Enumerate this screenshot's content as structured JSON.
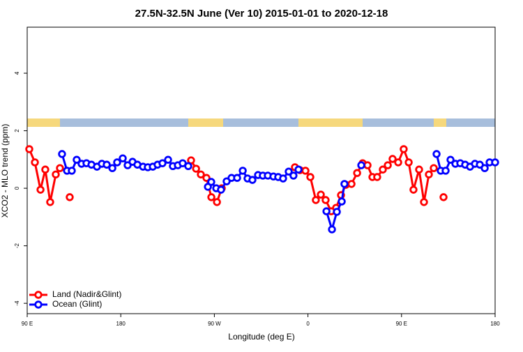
{
  "chart_data": {
    "type": "line",
    "title": "27.5N-32.5N June (Ver 10)   2015-01-01 to 2020-12-18",
    "x_label": "Longitude (deg E)",
    "y_label": "XCO2 - MLO trend (ppm)",
    "xlim": [
      90,
      540
    ],
    "xticks": [
      {
        "value": 90,
        "label": "90 E"
      },
      180,
      {
        "value": 270,
        "label": "90 W"
      },
      {
        "value": 360,
        "label": "0"
      },
      {
        "value": 450,
        "label": "90 E"
      },
      {
        "value": 540,
        "label": "180"
      }
    ],
    "ylim": [
      -4.36,
      5.6
    ],
    "yticks": [
      -4,
      -2,
      0,
      2,
      4
    ],
    "legend": "bottom-left",
    "series": [
      {
        "name": "Land (Nadir&Glint)",
        "color": "#ff0000",
        "x": [
          92.0,
          97.4,
          102.8,
          107.4,
          112.1,
          117.5,
          121.5,
          130.9,
          247.6,
          252.4,
          257.0,
          262.4,
          267.1,
          272.5,
          277.1,
          347.5,
          352.3,
          357.6,
          362.3,
          367.6,
          372.4,
          377.0,
          382.4,
          387.1,
          391.8,
          396.5,
          401.9,
          407.3,
          412.6,
          417.3,
          422.0,
          426.6,
          432.0,
          436.8,
          441.4,
          446.8,
          452.1,
          456.9,
          461.5,
          466.9,
          471.6,
          476.3,
          481.0,
          490.4
        ],
        "values": [
          1.36,
          0.9,
          -0.05,
          0.65,
          -0.48,
          0.48,
          0.7,
          -0.31,
          0.97,
          0.68,
          0.48,
          0.36,
          -0.31,
          -0.48,
          0.0,
          0.73,
          0.63,
          0.61,
          0.39,
          -0.41,
          -0.22,
          -0.41,
          -0.8,
          -0.68,
          -0.24,
          0.12,
          0.15,
          0.53,
          0.87,
          0.8,
          0.39,
          0.39,
          0.65,
          0.8,
          1.02,
          0.9,
          1.36,
          0.9,
          -0.05,
          0.65,
          -0.48,
          0.48,
          0.7,
          -0.31
        ],
        "breaks_after": [
          6,
          7,
          14,
          42
        ]
      },
      {
        "name": "Ocean (Glint)",
        "color": "#0000ff",
        "x": [
          123.5,
          128.3,
          132.9,
          137.6,
          142.3,
          147.0,
          151.8,
          157.1,
          161.8,
          166.5,
          171.9,
          176.5,
          181.9,
          186.6,
          191.3,
          196.0,
          201.4,
          206.0,
          210.8,
          215.4,
          220.1,
          225.5,
          230.1,
          234.9,
          239.5,
          244.9,
          263.8,
          267.0,
          271.8,
          276.4,
          281.8,
          286.5,
          291.9,
          297.3,
          301.9,
          306.6,
          312.0,
          316.6,
          321.4,
          326.8,
          331.4,
          336.1,
          341.5,
          346.1,
          350.9,
          377.8,
          383.1,
          387.8,
          392.5,
          395.1,
          411.3,
          483.7,
          487.7,
          492.4,
          497.1,
          501.8,
          506.5,
          511.2,
          515.9,
          520.6,
          525.3,
          530.0,
          534.7,
          540.0
        ],
        "values": [
          1.19,
          0.61,
          0.61,
          0.99,
          0.85,
          0.87,
          0.82,
          0.75,
          0.85,
          0.82,
          0.7,
          0.9,
          1.04,
          0.8,
          0.92,
          0.82,
          0.75,
          0.73,
          0.75,
          0.82,
          0.87,
          0.99,
          0.77,
          0.8,
          0.87,
          0.77,
          0.05,
          0.22,
          0.0,
          -0.05,
          0.24,
          0.36,
          0.36,
          0.61,
          0.34,
          0.29,
          0.46,
          0.44,
          0.44,
          0.41,
          0.39,
          0.34,
          0.58,
          0.44,
          0.65,
          -0.8,
          -1.43,
          -0.82,
          -0.46,
          0.15,
          0.8,
          1.19,
          0.61,
          0.61,
          0.99,
          0.85,
          0.87,
          0.82,
          0.75,
          0.85,
          0.82,
          0.7,
          0.9,
          0.9
        ],
        "breaks_after": [
          25,
          44,
          49,
          50
        ]
      }
    ]
  }
}
